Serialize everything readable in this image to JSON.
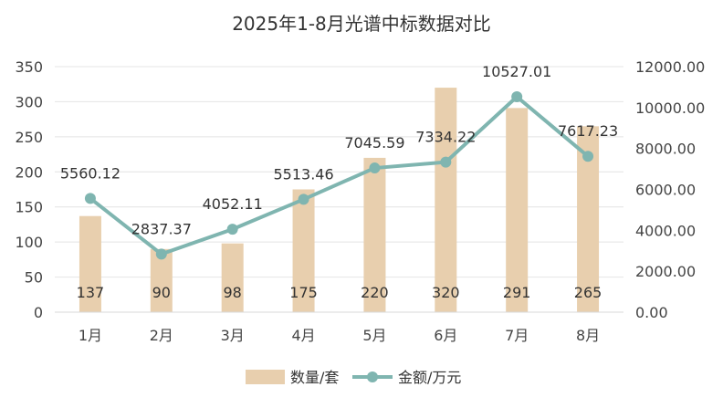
{
  "chart_data": {
    "type": "bar",
    "title": "2025年1-8月光谱中标数据对比",
    "categories": [
      "1月",
      "2月",
      "3月",
      "4月",
      "5月",
      "6月",
      "7月",
      "8月"
    ],
    "series": [
      {
        "name": "数量/套",
        "type": "bar",
        "axis": "left",
        "color": "#e8cfae",
        "values": [
          137,
          90,
          98,
          175,
          220,
          320,
          291,
          265
        ],
        "labels": [
          "137",
          "90",
          "98",
          "175",
          "220",
          "320",
          "291",
          "265"
        ]
      },
      {
        "name": "金额/万元",
        "type": "line",
        "axis": "right",
        "color": "#7fb5b0",
        "values": [
          5560.12,
          2837.37,
          4052.11,
          5513.46,
          7045.59,
          7334.22,
          10527.01,
          7617.23
        ],
        "labels": [
          "5560.12",
          "2837.37",
          "4052.11",
          "5513.46",
          "7045.59",
          "7334.22",
          "10527.01",
          "7617.23"
        ]
      }
    ],
    "y_left": {
      "range": [
        0,
        350
      ],
      "ticks": [
        0,
        50,
        100,
        150,
        200,
        250,
        300,
        350
      ],
      "tick_labels": [
        "0",
        "50",
        "100",
        "150",
        "200",
        "250",
        "300",
        "350"
      ]
    },
    "y_right": {
      "range": [
        0,
        12000
      ],
      "ticks": [
        0,
        2000,
        4000,
        6000,
        8000,
        10000,
        12000
      ],
      "tick_labels": [
        "0.00",
        "2000.00",
        "4000.00",
        "6000.00",
        "8000.00",
        "10000.00",
        "12000.00"
      ]
    },
    "grid": true,
    "legend_position": "bottom"
  }
}
